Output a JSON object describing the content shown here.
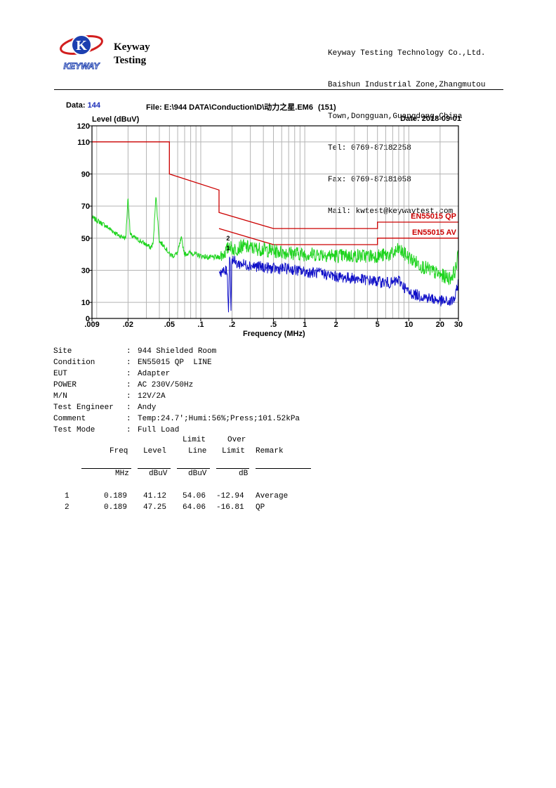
{
  "header": {
    "brand_line1": "Keyway",
    "brand_line2": "Testing",
    "logo_letter": "K",
    "logo_word": "KEYWAY",
    "company": [
      "Keyway Testing Technology Co.,Ltd.",
      "Baishun Industrial Zone,Zhangmutou",
      "Town,Dongguan,Guangdong,China",
      "Tel: 0769-87182258",
      "Fax: 0769-87181058",
      "Mail: kwtest@keywaytest.com"
    ]
  },
  "file_info": {
    "data_label": "Data:",
    "data_value": "144",
    "file_label": "File: E:\\944 DATA\\Conduction\\D\\动力之星.EM6",
    "file_index": "(151)",
    "date_label": "Date: 2018-09-01"
  },
  "colors": {
    "limit": "#cc0000",
    "qp_trace": "#1ed41e",
    "avg_trace": "#1010c8",
    "grid": "#b4b4b4",
    "data_value": "#1a2db8"
  },
  "chart_data": {
    "type": "line",
    "ylabel": "Level (dBuV)",
    "xlabel": "Frequency (MHz)",
    "xscale": "log",
    "xlim": [
      0.009,
      30
    ],
    "ylim": [
      0,
      120
    ],
    "xticks": [
      0.009,
      0.02,
      0.05,
      0.1,
      0.2,
      0.5,
      1,
      2,
      5,
      10,
      20,
      30
    ],
    "xtick_labels": [
      ".009",
      ".02",
      ".05",
      ".1",
      ".2",
      ".5",
      "1",
      "2",
      "5",
      "10",
      "20",
      "30"
    ],
    "yticks": [
      0,
      10,
      30,
      50,
      70,
      90,
      110,
      120
    ],
    "ytick_labels": [
      "0",
      "10",
      "30",
      "50",
      "70",
      "90",
      "110",
      "120"
    ],
    "grid": true,
    "series": [
      {
        "name": "EN55015 QP",
        "x": [
          0.009,
          0.05,
          0.05,
          0.15,
          0.15,
          0.5,
          5,
          5,
          30
        ],
        "y": [
          110,
          110,
          90,
          80,
          66,
          56,
          56,
          60,
          60
        ]
      },
      {
        "name": "EN55015 AV",
        "x": [
          0.15,
          0.5,
          5,
          5,
          30
        ],
        "y": [
          56,
          46,
          46,
          50,
          50
        ]
      },
      {
        "name": "",
        "x": [
          0.009,
          0.012,
          0.016,
          0.019,
          0.02,
          0.021,
          0.025,
          0.03,
          0.033,
          0.035,
          0.037,
          0.04,
          0.045,
          0.05,
          0.055,
          0.06,
          0.065,
          0.07,
          0.08,
          0.1,
          0.12,
          0.15,
          0.17,
          0.185,
          0.189,
          0.195,
          0.21,
          0.25,
          0.3,
          0.4,
          0.5,
          0.7,
          1,
          1.5,
          2,
          3,
          5,
          7,
          8,
          10,
          13,
          20,
          25,
          28,
          30
        ],
        "y": [
          63,
          58,
          52,
          50,
          76,
          52,
          49,
          46,
          44,
          47,
          77,
          48,
          45,
          40,
          39,
          41,
          50,
          40,
          41,
          39,
          38,
          38,
          41,
          44,
          47.25,
          44,
          43,
          45,
          44,
          43,
          42,
          41,
          40,
          40,
          39,
          39,
          39,
          40,
          43,
          38,
          33,
          27,
          25,
          30,
          40
        ]
      },
      {
        "name": "",
        "x": [
          0.15,
          0.17,
          0.18,
          0.185,
          0.189,
          0.192,
          0.195,
          0.198,
          0.2,
          0.22,
          0.25,
          0.3,
          0.4,
          0.5,
          0.7,
          1,
          1.5,
          2,
          3,
          5,
          7,
          8,
          10,
          13,
          20,
          25,
          28,
          30
        ],
        "y": [
          29,
          29,
          30,
          2,
          41.12,
          36,
          2,
          30,
          38,
          34,
          34,
          33,
          32,
          31,
          31,
          29,
          28,
          26,
          25,
          23,
          22,
          24,
          16,
          14,
          11,
          10,
          13,
          23
        ]
      }
    ],
    "markers": [
      {
        "label": "1",
        "x": 0.189,
        "y": 41.12
      },
      {
        "label": "2",
        "x": 0.189,
        "y": 47.25
      }
    ],
    "limit_labels": [
      "EN55015 QP",
      "EN55015 AV"
    ]
  },
  "test_info": [
    {
      "key": "Site",
      "value": "944 Shielded Room"
    },
    {
      "key": "Condition",
      "value": "EN55015 QP  LINE"
    },
    {
      "key": "EUT",
      "value": "Adapter"
    },
    {
      "key": "POWER",
      "value": "AC 230V/50Hz"
    },
    {
      "key": "M/N",
      "value": "12V/2A"
    },
    {
      "key": "Test Engineer",
      "value": "Andy"
    },
    {
      "key": "Comment",
      "value": "Temp:24.7';Humi:56%;Press;101.52kPa"
    },
    {
      "key": "Test Mode",
      "value": "Full Load"
    }
  ],
  "table": {
    "head1": [
      "",
      "",
      "Limit",
      "Over",
      ""
    ],
    "head2": [
      "Freq",
      "Level",
      "Line",
      "Limit",
      "Remark"
    ],
    "units": [
      "MHz",
      "dBuV",
      "dBuV",
      "dB",
      ""
    ],
    "rows": [
      {
        "no": "1",
        "freq": "0.189",
        "level": "41.12",
        "limit": "54.06",
        "over": "-12.94",
        "remark": "Average"
      },
      {
        "no": "2",
        "freq": "0.189",
        "level": "47.25",
        "limit": "64.06",
        "over": "-16.81",
        "remark": "QP"
      }
    ]
  }
}
